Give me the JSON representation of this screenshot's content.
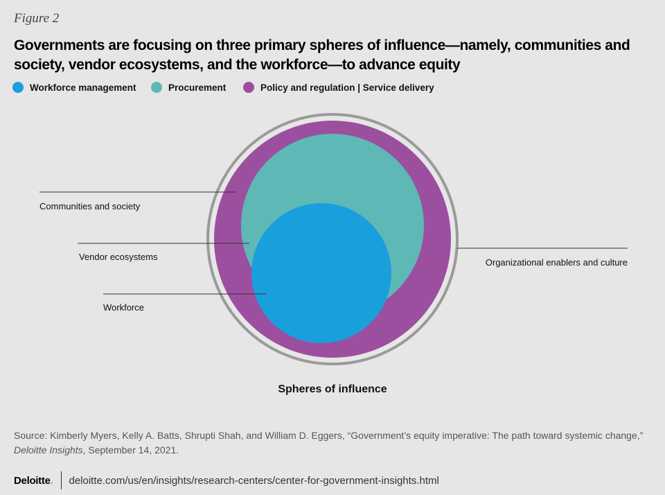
{
  "figure_label": "Figure 2",
  "title": "Governments are focusing on three primary spheres of influence—namely, communities and society, vendor ecosystems, and the workforce—to advance equity",
  "legend": [
    {
      "label": "Workforce management",
      "color": "#199fdc"
    },
    {
      "label": "Procurement",
      "color": "#5eb8b6"
    },
    {
      "label": "Policy and regulation | Service delivery",
      "color": "#9c4f9f"
    }
  ],
  "diagram": {
    "labels": {
      "communities": "Communities and society",
      "vendor": "Vendor ecosystems",
      "workforce": "Workforce",
      "enablers": "Organizational enablers and culture"
    },
    "colors": {
      "outer_ring": "#9a9a9a",
      "policy": "#9c4f9f",
      "procurement": "#5eb8b6",
      "workforce": "#199fdc",
      "leader_lines": "#333333"
    },
    "caption": "Spheres of  influence"
  },
  "source": {
    "prefix": "Source: Kimberly Myers, Kelly A. Batts, Shrupti Shah, and William D. Eggers, “Government’s equity imperative: The path toward systemic change,”",
    "publication": "Deloitte Insights",
    "date": ", September 14, 2021."
  },
  "footer": {
    "brand": "Deloitte",
    "brand_dot": ".",
    "url": "deloitte.com/us/en/insights/research-centers/center-for-government-insights.html"
  }
}
